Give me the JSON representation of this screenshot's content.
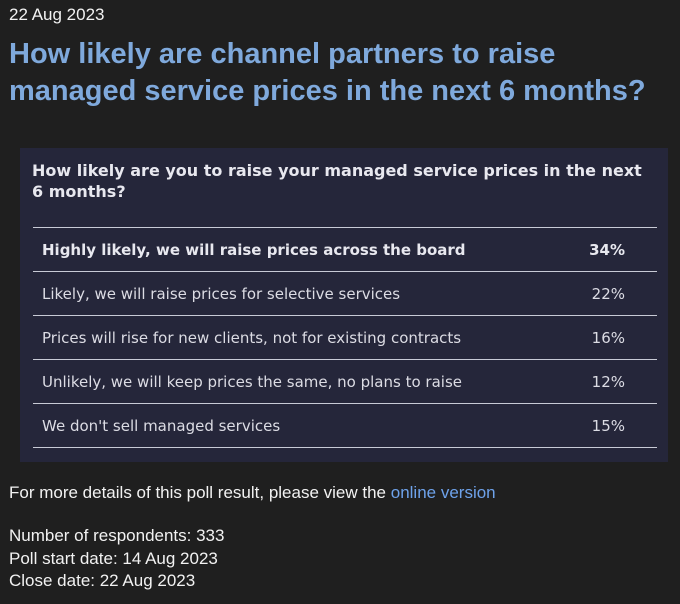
{
  "date": "22 Aug 2023",
  "headline": "How likely are channel partners to raise managed service prices in the next 6 months?",
  "poll": {
    "question": "How likely are you to raise your managed service prices in the next 6 months?",
    "options": [
      {
        "label": "Highly likely, we will raise prices across the board",
        "percent": "34%"
      },
      {
        "label": "Likely, we will raise prices for selective services",
        "percent": "22%"
      },
      {
        "label": "Prices will rise for new clients, not for existing contracts",
        "percent": "16%"
      },
      {
        "label": "Unlikely, we will keep prices the same, no plans to raise",
        "percent": "12%"
      },
      {
        "label": "We don't sell managed services",
        "percent": "15%"
      }
    ]
  },
  "details": {
    "text": "For more details of this poll result, please view the ",
    "link_text": "online version"
  },
  "meta": {
    "respondents": "Number of respondents: 333",
    "start_date": "Poll start date: 14 Aug 2023",
    "close_date": "Close date: 22 Aug 2023"
  },
  "colors": {
    "background": "#1f1f1f",
    "headline": "#7fa9dc",
    "card": "#25263a",
    "link": "#6ea2ea"
  }
}
